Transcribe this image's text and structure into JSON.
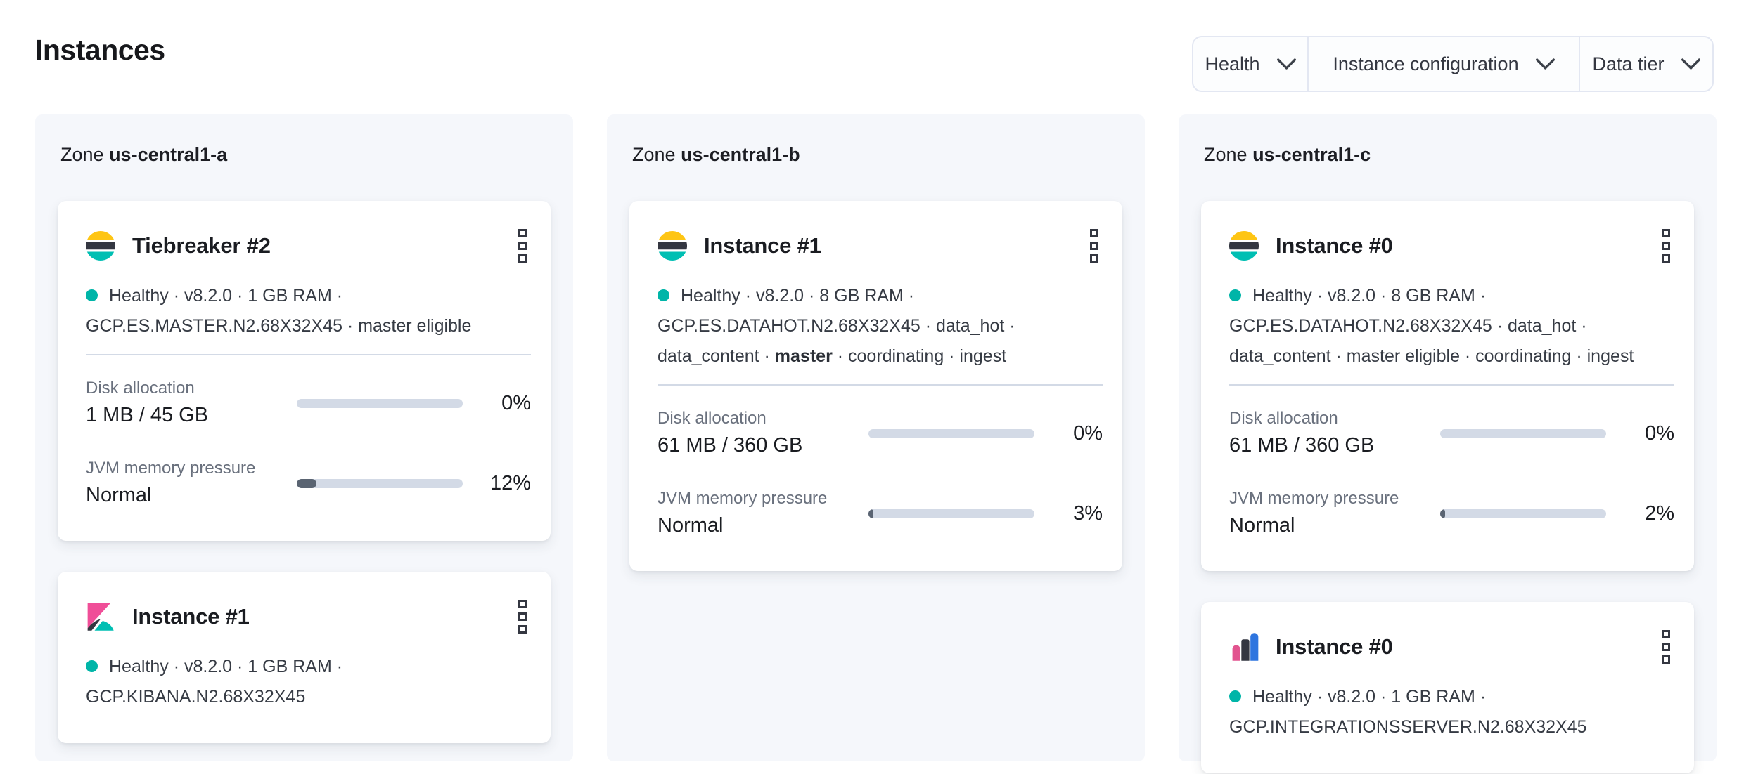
{
  "page": {
    "title": "Instances"
  },
  "filters": {
    "health": "Health",
    "instance_configuration": "Instance configuration",
    "data_tier": "Data tier"
  },
  "icons": {
    "filter_chevron": "chevron-down",
    "card_menu": "boxes-vertical",
    "health_indicator": "health-dot",
    "elasticsearch": "elasticsearch-logo",
    "kibana": "kibana-logo",
    "integrations_server": "integrations-server-logo"
  },
  "colors": {
    "healthy_dot": "#00B5A8",
    "elastic_yellow": "#FEC514",
    "elastic_dark": "#343741",
    "elastic_teal": "#00BFB3",
    "kibana_pink": "#F04E98",
    "integrations_pink": "#E2548F",
    "integrations_blue": "#2E75DF",
    "bar_track": "#D3DAE6",
    "bar_fill": "#5A6472",
    "zone_panel_bg": "#F5F7FB"
  },
  "zones": [
    {
      "label": "Zone",
      "name": "us-central1-a",
      "cards": [
        {
          "title": "Tiebreaker #2",
          "status_line1": "Healthy · v8.2.0 · 1 GB RAM ·",
          "status_line2": "GCP.ES.MASTER.N2.68X32X45 · master eligible",
          "metrics": [
            {
              "label": "Disk allocation",
              "value": "1 MB / 45 GB",
              "percent": "0%",
              "fill": 0
            },
            {
              "label": "JVM memory pressure",
              "value": "Normal",
              "percent": "12%",
              "fill": 12
            }
          ]
        },
        {
          "title": "Instance #1",
          "status_line1": "Healthy · v8.2.0 · 1 GB RAM ·",
          "status_line2": "GCP.KIBANA.N2.68X32X45"
        }
      ]
    },
    {
      "label": "Zone",
      "name": "us-central1-b",
      "cards": [
        {
          "title": "Instance #1",
          "status_line1": "Healthy · v8.2.0 · 8 GB RAM ·",
          "status_line2": "GCP.ES.DATAHOT.N2.68X32X45 · data_hot ·",
          "status_line3_pre": "data_content · ",
          "status_line3_bold": "master",
          "status_line3_post": " · coordinating · ingest",
          "metrics": [
            {
              "label": "Disk allocation",
              "value": "61 MB / 360 GB",
              "percent": "0%",
              "fill": 0
            },
            {
              "label": "JVM memory pressure",
              "value": "Normal",
              "percent": "3%",
              "fill": 3
            }
          ]
        }
      ]
    },
    {
      "label": "Zone",
      "name": "us-central1-c",
      "cards": [
        {
          "title": "Instance #0",
          "status_line1": "Healthy · v8.2.0 · 8 GB RAM ·",
          "status_line2": "GCP.ES.DATAHOT.N2.68X32X45 · data_hot ·",
          "status_line3": "data_content · master eligible · coordinating · ingest",
          "metrics": [
            {
              "label": "Disk allocation",
              "value": "61 MB / 360 GB",
              "percent": "0%",
              "fill": 0
            },
            {
              "label": "JVM memory pressure",
              "value": "Normal",
              "percent": "2%",
              "fill": 2
            }
          ]
        },
        {
          "title": "Instance #0",
          "status_line1": "Healthy · v8.2.0 · 1 GB RAM ·",
          "status_line2": "GCP.INTEGRATIONSSERVER.N2.68X32X45"
        }
      ]
    }
  ]
}
